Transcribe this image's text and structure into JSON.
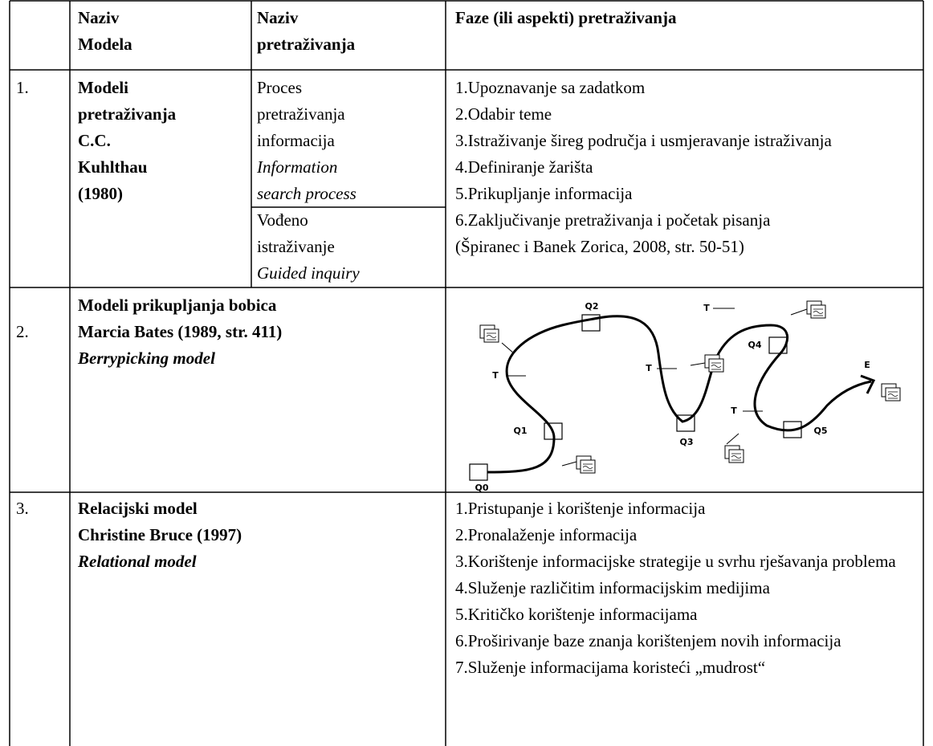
{
  "table": {
    "header": [
      [
        "Naziv",
        "Modela"
      ],
      [
        "Naziv",
        "pretraživanja"
      ],
      [
        "Faze (ili aspekti) pretraživanja"
      ]
    ],
    "rows": [
      {
        "number": "1.",
        "model": [
          "Modeli",
          "pretraživanja",
          "C.C.",
          "Kuhlthau",
          "(1980)"
        ],
        "search": [
          {
            "lines": [
              "Proces",
              "pretraživanja",
              "informacija"
            ],
            "english": [
              "Information",
              "search process"
            ]
          },
          {
            "lines": [
              "Vođeno",
              "istraživanje"
            ],
            "english": [
              "Guided inquiry"
            ]
          }
        ],
        "phases": [
          "1.Upoznavanje sa zadatkom",
          "2.Odabir teme",
          "3.Istraživanje šireg područja i usmjeravanje istraživanja",
          "4.Definiranje žarišta",
          "5.Prikupljanje informacija",
          "6.Zaključivanje pretraživanja i početak pisanja",
          "(Špiranec i Banek Zorica, 2008, str. 50-51)"
        ]
      },
      {
        "number": "2.",
        "model": [
          "Modeli prikupljanja bobica",
          "Marcia Bates (1989, str. 411)"
        ],
        "english": "Berrypicking model",
        "diagram": {
          "labels": [
            "Q0",
            "Q1",
            "Q2",
            "Q3",
            "Q4",
            "Q5",
            "T",
            "T",
            "T",
            "T",
            "E"
          ]
        }
      },
      {
        "number": "3.",
        "model": [
          "Relacijski model",
          "Christine Bruce (1997)"
        ],
        "english": "Relational model",
        "phases": [
          "1.Pristupanje i korištenje informacija",
          "2.Pronalaženje informacija",
          "3.Korištenje informacijske strategije u svrhu rješavanja problema",
          "4.Služenje različitim informacijskim medijima",
          "5.Kritičko korištenje informacijama",
          "6.Proširivanje baze znanja korištenjem novih informacija",
          "7.Služenje informacijama koristeći „mudrost“"
        ]
      }
    ]
  }
}
